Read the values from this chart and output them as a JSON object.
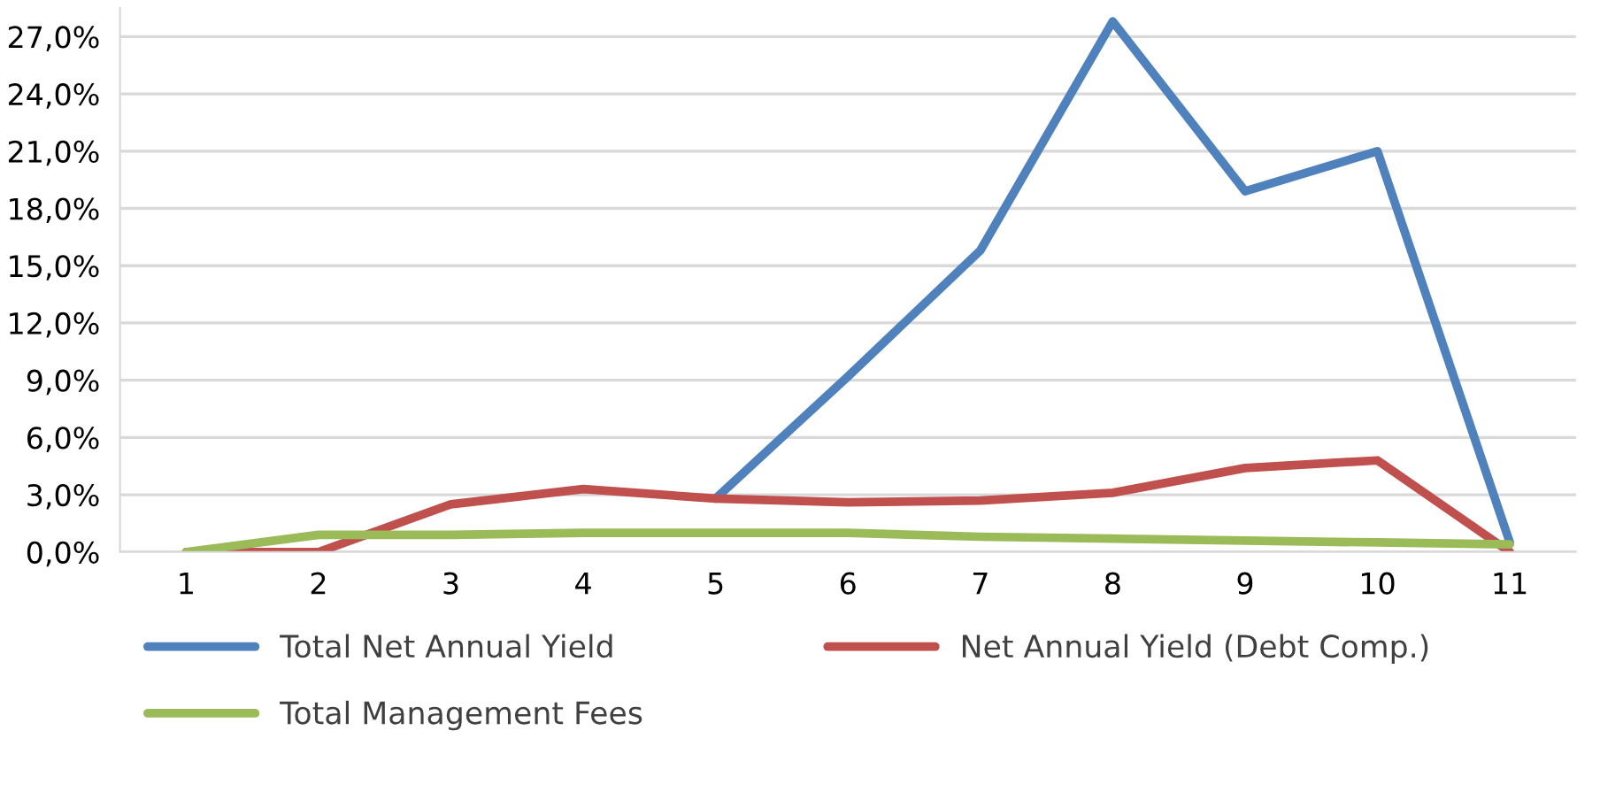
{
  "chart_data": {
    "type": "line",
    "categories": [
      "1",
      "2",
      "3",
      "4",
      "5",
      "6",
      "7",
      "8",
      "9",
      "10",
      "11"
    ],
    "series": [
      {
        "name": "Total Net Annual Yield",
        "color": "#4f81bd",
        "values": [
          null,
          null,
          null,
          null,
          2.8,
          9.2,
          15.8,
          27.8,
          18.9,
          21.0,
          0.5
        ]
      },
      {
        "name": "Net Annual Yield (Debt Comp.)",
        "color": "#c0504d",
        "values": [
          0.0,
          0.0,
          2.5,
          3.3,
          2.8,
          2.6,
          2.7,
          3.1,
          4.4,
          4.8,
          0.0
        ]
      },
      {
        "name": "Total Management Fees",
        "color": "#9bbb59",
        "values": [
          0.0,
          0.9,
          0.9,
          1.0,
          1.0,
          1.0,
          0.8,
          0.7,
          0.6,
          0.5,
          0.4
        ]
      }
    ],
    "ylim": [
      0,
      28.5
    ],
    "yticks": [
      {
        "value": 0,
        "label": "0,0%"
      },
      {
        "value": 3,
        "label": "3,0%"
      },
      {
        "value": 6,
        "label": "6,0%"
      },
      {
        "value": 9,
        "label": "9,0%"
      },
      {
        "value": 12,
        "label": "12,0%"
      },
      {
        "value": 15,
        "label": "15,0%"
      },
      {
        "value": 18,
        "label": "18,0%"
      },
      {
        "value": 21,
        "label": "21,0%"
      },
      {
        "value": 24,
        "label": "24,0%"
      },
      {
        "value": 27,
        "label": "27,0%"
      }
    ],
    "grid": "y",
    "legend": "bottom",
    "marker": "none",
    "line_style": "solid"
  }
}
